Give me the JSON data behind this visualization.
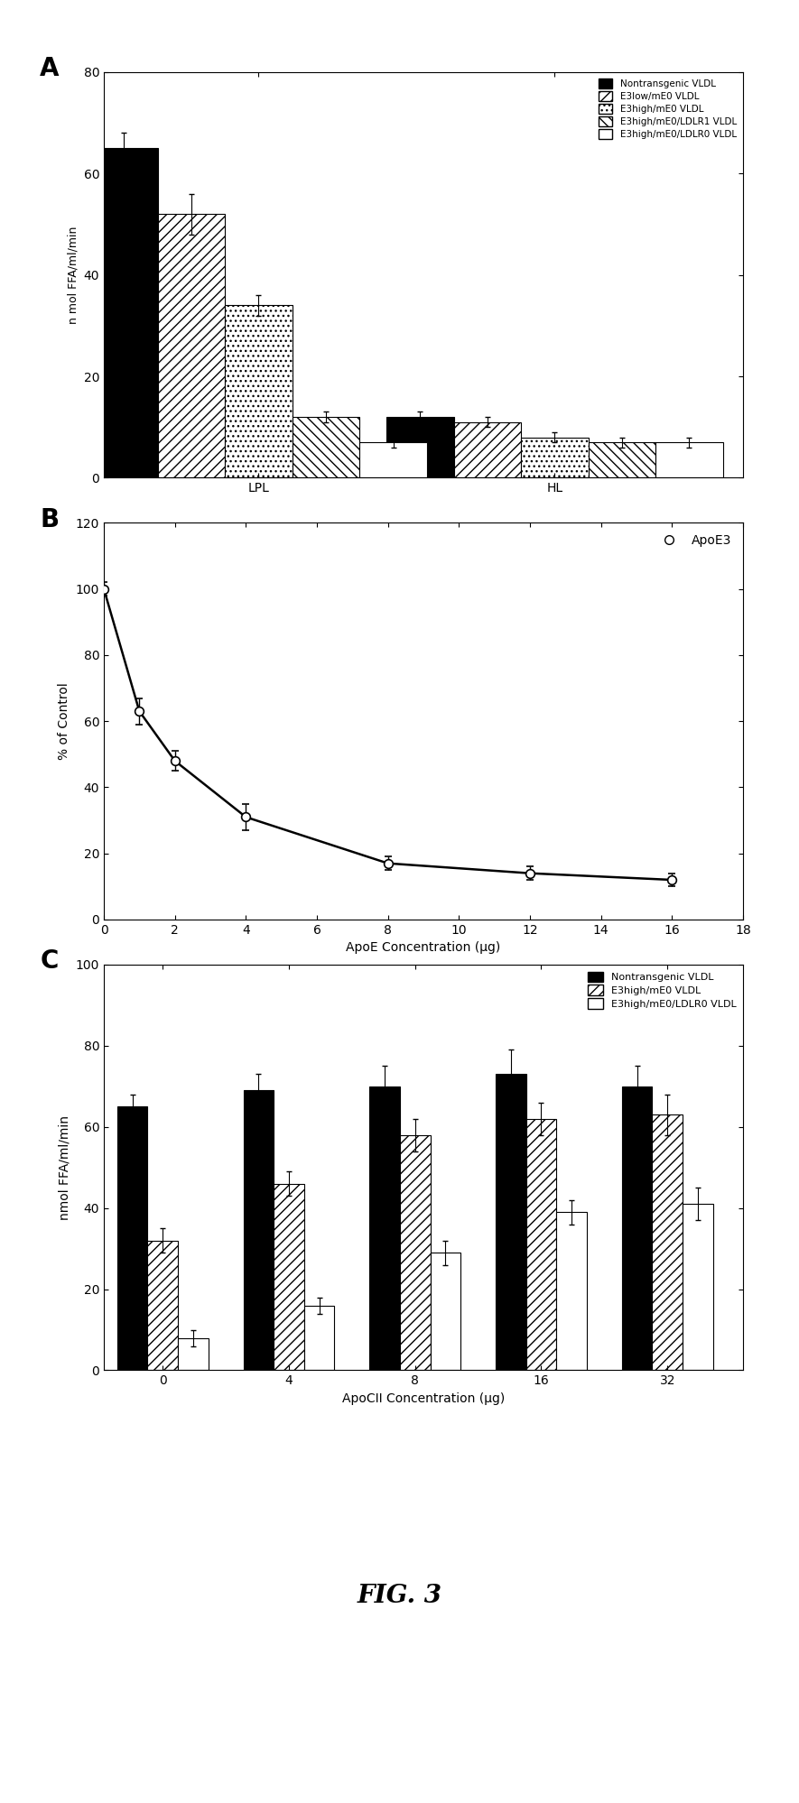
{
  "panel_A": {
    "ylabel": "n mol FFA/ml/min",
    "ylim": [
      0,
      80
    ],
    "yticks": [
      0,
      20,
      40,
      60,
      80
    ],
    "groups": [
      "LPL",
      "HL"
    ],
    "series": [
      {
        "label": "Nontransgenic VLDL",
        "fc": "black",
        "hatch": "",
        "values": [
          65,
          12
        ],
        "errors": [
          3,
          1
        ]
      },
      {
        "label": "E3low/mE0 VLDL",
        "fc": "white",
        "hatch": "///",
        "values": [
          52,
          11
        ],
        "errors": [
          4,
          1
        ]
      },
      {
        "label": "E3high/mE0 VLDL",
        "fc": "white",
        "hatch": "...",
        "values": [
          34,
          8
        ],
        "errors": [
          2,
          1
        ]
      },
      {
        "label": "E3high/mE0/LDLR1 VLDL",
        "fc": "white",
        "hatch": "\\\\\\",
        "values": [
          12,
          7
        ],
        "errors": [
          1,
          1
        ]
      },
      {
        "label": "E3high/mE0/LDLR0 VLDL",
        "fc": "white",
        "hatch": "",
        "values": [
          7,
          7
        ],
        "errors": [
          1,
          1
        ]
      }
    ],
    "bar_width": 0.1,
    "group_centers": [
      0.28,
      0.72
    ]
  },
  "panel_B": {
    "ylabel": "% of Control",
    "xlabel": "ApoE Concentration (μg)",
    "ylim": [
      0,
      120
    ],
    "yticks": [
      0,
      20,
      40,
      60,
      80,
      100,
      120
    ],
    "xlim": [
      0,
      18
    ],
    "xticks": [
      0,
      2,
      4,
      6,
      8,
      10,
      12,
      14,
      16,
      18
    ],
    "legend_label": "ApoE3",
    "x_data": [
      0,
      1,
      2,
      4,
      8,
      12,
      16
    ],
    "y_data": [
      100,
      63,
      48,
      31,
      17,
      14,
      12
    ],
    "y_errors": [
      2,
      4,
      3,
      4,
      2,
      2,
      2
    ]
  },
  "panel_C": {
    "ylabel": "nmol FFA/ml/min",
    "xlabel": "ApoCII Concentration (μg)",
    "ylim": [
      0,
      100
    ],
    "yticks": [
      0,
      20,
      40,
      60,
      80,
      100
    ],
    "groups": [
      "0",
      "4",
      "8",
      "16",
      "32"
    ],
    "series": [
      {
        "label": "Nontransgenic VLDL",
        "fc": "black",
        "hatch": "",
        "values": [
          65,
          69,
          70,
          73,
          70
        ],
        "errors": [
          3,
          4,
          5,
          6,
          5
        ]
      },
      {
        "label": "E3high/mE0 VLDL",
        "fc": "white",
        "hatch": "///",
        "values": [
          32,
          46,
          58,
          62,
          63
        ],
        "errors": [
          3,
          3,
          4,
          4,
          5
        ]
      },
      {
        "label": "E3high/mE0/LDLR0 VLDL",
        "fc": "white",
        "hatch": "",
        "values": [
          8,
          16,
          29,
          39,
          41
        ],
        "errors": [
          2,
          2,
          3,
          3,
          4
        ]
      }
    ],
    "bar_width": 0.18
  },
  "fig_label": "FIG. 3",
  "background_color": "#ffffff"
}
